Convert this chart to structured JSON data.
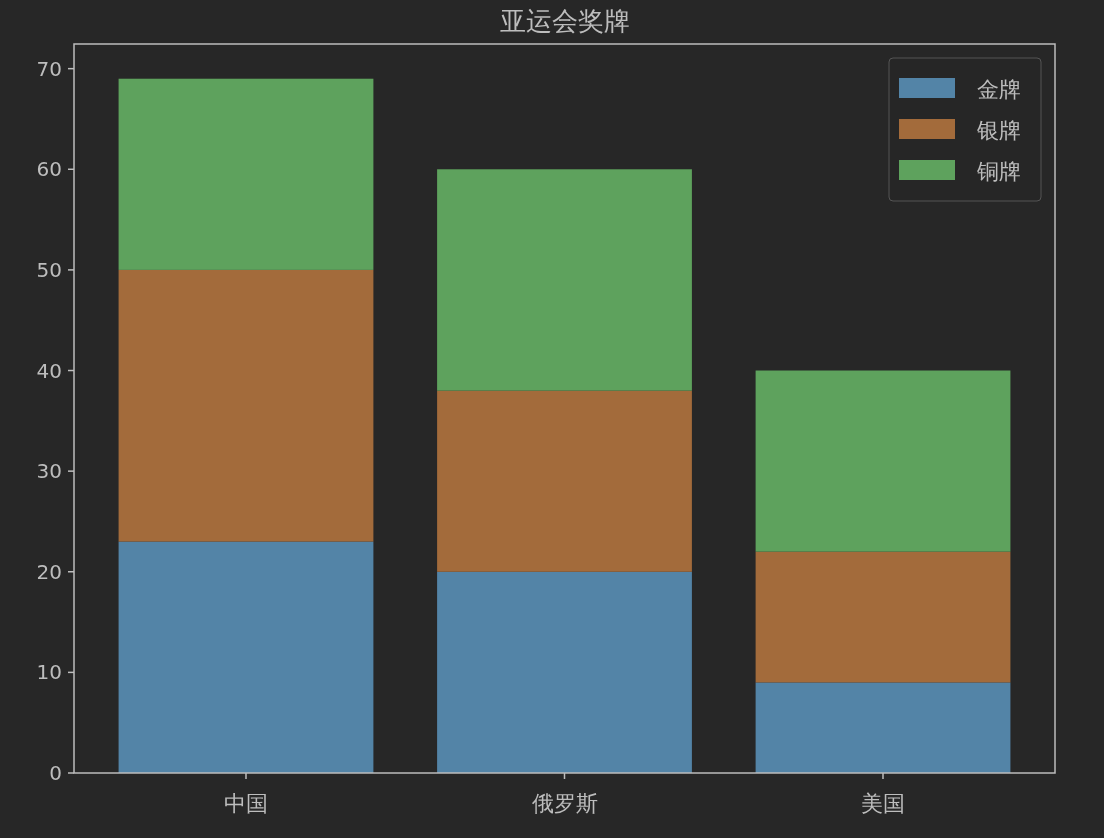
{
  "chart_data": {
    "type": "bar",
    "title": "亚运会奖牌",
    "categories": [
      "中国",
      "俄罗斯",
      "美国"
    ],
    "stacked": true,
    "series": [
      {
        "name": "金牌",
        "color": "#5384a7",
        "values": [
          23,
          20,
          9
        ]
      },
      {
        "name": "银牌",
        "color": "#a36b3b",
        "values": [
          27,
          18,
          13
        ]
      },
      {
        "name": "铜牌",
        "color": "#5ea25d",
        "values": [
          19,
          22,
          18
        ]
      }
    ],
    "ylim": [
      0,
      72.45
    ],
    "yticks": [
      0,
      10,
      20,
      30,
      40,
      50,
      60,
      70
    ],
    "grid": false,
    "legend": "top right"
  }
}
